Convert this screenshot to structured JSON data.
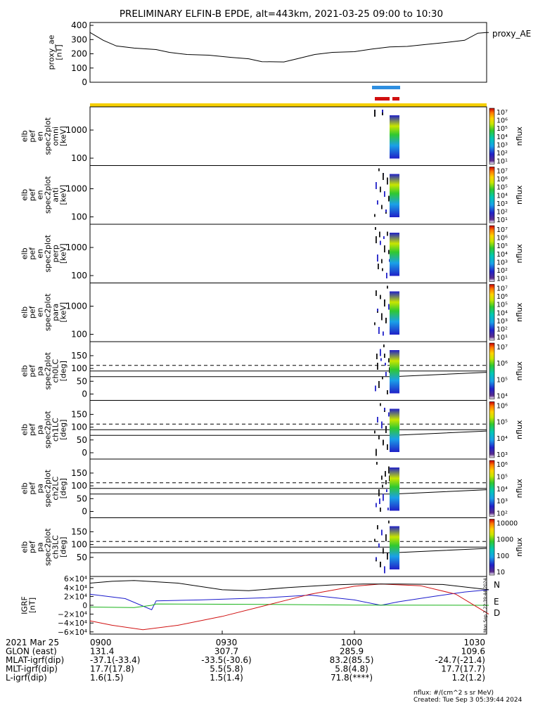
{
  "chart_data": {
    "type": "spectrogram",
    "title": "PRELIMINARY ELFIN-B EPDE, alt=443km, 2021-03-25 09:00 to 10:30",
    "time_range": [
      "0900",
      "1030"
    ],
    "colors": {
      "orbit_bar": "#f5cf00",
      "science_bar_blue": "#2f8fe0",
      "science_bar_red": "#d01010",
      "n_component": "#1a1acc",
      "e_component": "#19b319",
      "d_component": "#d01010"
    },
    "proxy_ae": {
      "ylabel": "proxy_ae\n[nT]",
      "legend": "proxy_AE",
      "ticks": [
        "400",
        "300",
        "200",
        "100",
        "0"
      ],
      "ylim": [
        0,
        420
      ],
      "points": [
        [
          900,
          350
        ],
        [
          903,
          295
        ],
        [
          906,
          255
        ],
        [
          910,
          240
        ],
        [
          915,
          230
        ],
        [
          918,
          210
        ],
        [
          922,
          195
        ],
        [
          927,
          190
        ],
        [
          932,
          175
        ],
        [
          936,
          165
        ],
        [
          939,
          145
        ],
        [
          944,
          143
        ],
        [
          947,
          165
        ],
        [
          951,
          195
        ],
        [
          955,
          210
        ],
        [
          960,
          215
        ],
        [
          964,
          233
        ],
        [
          968,
          248
        ],
        [
          972,
          252
        ],
        [
          976,
          265
        ],
        [
          981,
          280
        ],
        [
          985,
          295
        ],
        [
          988,
          345
        ],
        [
          990,
          350
        ],
        [
          990.5,
          350
        ]
      ]
    },
    "spectrograms": [
      {
        "ylabel": "elb\npef\nen\nspec2plot\nomni\n[keV]",
        "ticks": [
          "1000",
          "100"
        ],
        "cbar_label": "nflux",
        "cbar_ticks": [
          "10⁷",
          "10⁶",
          "10⁵",
          "10⁴",
          "10³",
          "10²",
          "10¹"
        ]
      },
      {
        "ylabel": "elb\npef\nen\nspec2plot\nanti\n[keV]",
        "ticks": [
          "1000",
          "100"
        ],
        "cbar_label": "nflux",
        "cbar_ticks": [
          "10⁷",
          "10⁶",
          "10⁵",
          "10⁴",
          "10³",
          "10²",
          "10¹"
        ]
      },
      {
        "ylabel": "elb\npef\nen\nspec2plot\nperp\n[keV]",
        "ticks": [
          "1000",
          "100"
        ],
        "cbar_label": "nflux",
        "cbar_ticks": [
          "10⁷",
          "10⁶",
          "10⁵",
          "10⁴",
          "10³",
          "10²",
          "10¹"
        ]
      },
      {
        "ylabel": "elb\npef\nen\nspec2plot\npara\n[keV]",
        "ticks": [
          "1000",
          "100"
        ],
        "cbar_label": "nflux",
        "cbar_ticks": [
          "10⁷",
          "10⁶",
          "10⁵",
          "10⁴",
          "10³",
          "10²",
          "10¹"
        ]
      },
      {
        "ylabel": "elb\npef\npa\nspec2plot\nch0LC\n[deg]",
        "ticks": [
          "150",
          "100",
          "50",
          "0"
        ],
        "cbar_label": "nflux",
        "cbar_ticks": [
          "10⁷",
          "10⁶",
          "10⁵",
          "10⁴"
        ]
      },
      {
        "ylabel": "elb\npef\npa\nspec2plot\nch1LC\n[deg]",
        "ticks": [
          "150",
          "100",
          "50",
          "0"
        ],
        "cbar_label": "nflux",
        "cbar_ticks": [
          "10⁶",
          "10⁵",
          "10⁴",
          "10³"
        ]
      },
      {
        "ylabel": "elb\npef\npa\nspec2plot\nch2LC\n[deg]",
        "ticks": [
          "150",
          "100",
          "50",
          "0"
        ],
        "cbar_label": "nflux",
        "cbar_ticks": [
          "10⁶",
          "10⁵",
          "10⁴",
          "10³",
          "10²"
        ]
      },
      {
        "ylabel": "elb\npef\npa\nspec2plot\nch3LC\n[deg]",
        "ticks": [
          "150",
          "100",
          "50"
        ],
        "cbar_label": "nflux",
        "cbar_ticks": [
          "10000",
          "1000",
          "100",
          "10"
        ]
      }
    ],
    "igrf": {
      "ylabel": "IGRF\n[nT]",
      "ticks": [
        "6×10⁴",
        "4×10⁴",
        "2×10⁴",
        "0",
        "−2×10⁴",
        "−4×10⁴",
        "−6×10⁴"
      ],
      "ylim": [
        -65000,
        65000
      ],
      "legend": [
        "N",
        "E",
        "D"
      ],
      "series": [
        {
          "name": "N",
          "points": [
            [
              900,
              25000
            ],
            [
              908,
              15000
            ],
            [
              914,
              -10000
            ],
            [
              915,
              10000
            ],
            [
              925,
              12000
            ],
            [
              940,
              17000
            ],
            [
              950,
              23000
            ],
            [
              960,
              12000
            ],
            [
              966,
              0
            ],
            [
              970,
              8000
            ],
            [
              978,
              20000
            ],
            [
              985,
              30000
            ],
            [
              990.5,
              35000
            ]
          ]
        },
        {
          "name": "E",
          "points": [
            [
              900,
              -4000
            ],
            [
              910,
              -5000
            ],
            [
              914,
              0
            ],
            [
              915,
              3000
            ],
            [
              940,
              2000
            ],
            [
              960,
              500
            ],
            [
              990.5,
              0
            ]
          ]
        },
        {
          "name": "D",
          "points": [
            [
              900,
              -35000
            ],
            [
              905,
              -45000
            ],
            [
              912,
              -55000
            ],
            [
              920,
              -45000
            ],
            [
              930,
              -25000
            ],
            [
              940,
              0
            ],
            [
              950,
              25000
            ],
            [
              960,
              43000
            ],
            [
              966,
              48000
            ],
            [
              975,
              44000
            ],
            [
              983,
              25000
            ],
            [
              990.5,
              -20000
            ]
          ]
        },
        {
          "name": "total",
          "points": [
            [
              900,
              50000
            ],
            [
              905,
              54000
            ],
            [
              910,
              56000
            ],
            [
              920,
              50000
            ],
            [
              930,
              35000
            ],
            [
              936,
              33000
            ],
            [
              945,
              40000
            ],
            [
              955,
              46000
            ],
            [
              962,
              48000
            ],
            [
              970,
              48000
            ],
            [
              980,
              47000
            ],
            [
              990.5,
              35000
            ]
          ]
        }
      ]
    },
    "ephemeris": {
      "rows": [
        {
          "label": "2021 Mar 25",
          "values": [
            "0900",
            "0930",
            "1000",
            "1030"
          ]
        },
        {
          "label": "GLON (east)",
          "values": [
            "131.4",
            "307.7",
            "285.9",
            "109.6"
          ]
        },
        {
          "label": "MLAT-igrf(dip)",
          "values": [
            "-37.1(-33.4)",
            "-33.5(-30.6)",
            "83.2(85.5)",
            "-24.7(-21.4)"
          ]
        },
        {
          "label": "MLT-igrf(dip)",
          "values": [
            "17.7(17.8)",
            "5.5(5.8)",
            "5.8(4.8)",
            "17.7(17.7)"
          ]
        },
        {
          "label": "L-igrf(dip)",
          "values": [
            "1.6(1.5)",
            "1.5(1.4)",
            "71.8(****)",
            "1.2(1.2)"
          ]
        }
      ]
    },
    "footer": {
      "units": "nflux: #/(cm^2 s sr MeV)",
      "created": "Created: Tue Sep  3 05:39:44 2024",
      "side_stamp": "Mon Sep  2 22:39:44 2024"
    }
  }
}
